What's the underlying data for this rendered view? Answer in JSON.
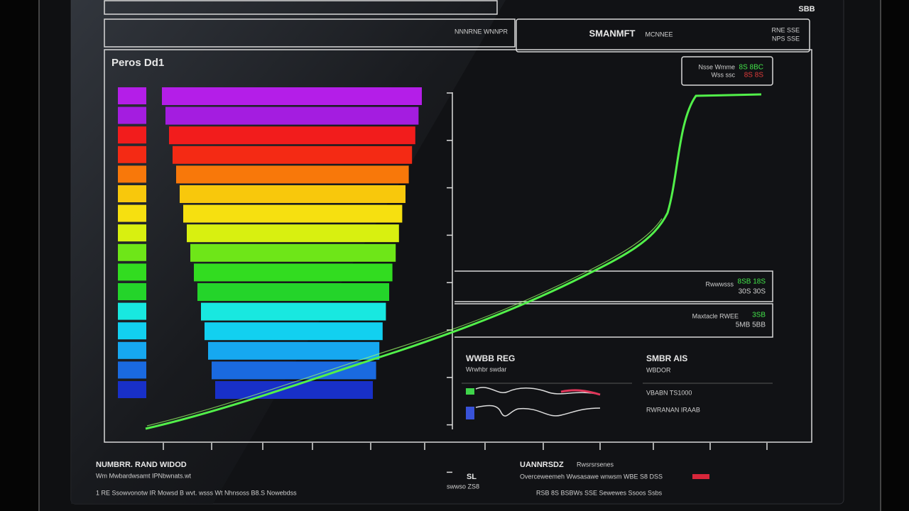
{
  "top_bar": {
    "icon_label": "SBB"
  },
  "header": {
    "left_caption": "NNNRNE WNNPR",
    "title": "SMANMFT",
    "subtitle": "MCNNEE",
    "meta": [
      "RNE SSE",
      "NPS SSE"
    ]
  },
  "chart": {
    "title": "Peros Dd1",
    "legend_top": {
      "label": "Nsse Wmme",
      "sub": "Wss ssc",
      "value_a": "8S 8BC",
      "value_b": "8S 8S"
    },
    "legend_mid": {
      "label": "Rwwwsss",
      "value_a": "8SB 18S",
      "value_b": "30S 30S"
    },
    "legend_low": {
      "label": "Maxtacle RWEE",
      "value_a": "3SB",
      "value_b": "5MB 5BB"
    }
  },
  "panels": [
    {
      "title": "WWBB REG",
      "caption": "Wrwhbr swdar"
    },
    {
      "title": "SMBR AIS",
      "rows": [
        "WBDOR",
        "VBABN TS1000",
        "RWRANAN IRAAB"
      ]
    }
  ],
  "footer": {
    "left": {
      "title": "NUMBRR. RAND WIDOD",
      "line": "Wm Mwbardwsamt IPNbwnats.wt",
      "small": "1 RE  Ssowvonotw IR Mowsd  B wvt.  wsss Wt Nhnsoss  B8.S  Nowebdss"
    },
    "center": {
      "title": "SL",
      "small": "swwso ZS8"
    },
    "right": {
      "title": "UANNRSDZ",
      "sub": "Rwsrsrsenes",
      "line": "Overceweemeh  Wwsasawe  wnwsm WBE  S8 DSS",
      "small": "RSB 8S  BSBWs  SSE  Sewewes  Ssoos  Ssbs"
    }
  }
}
